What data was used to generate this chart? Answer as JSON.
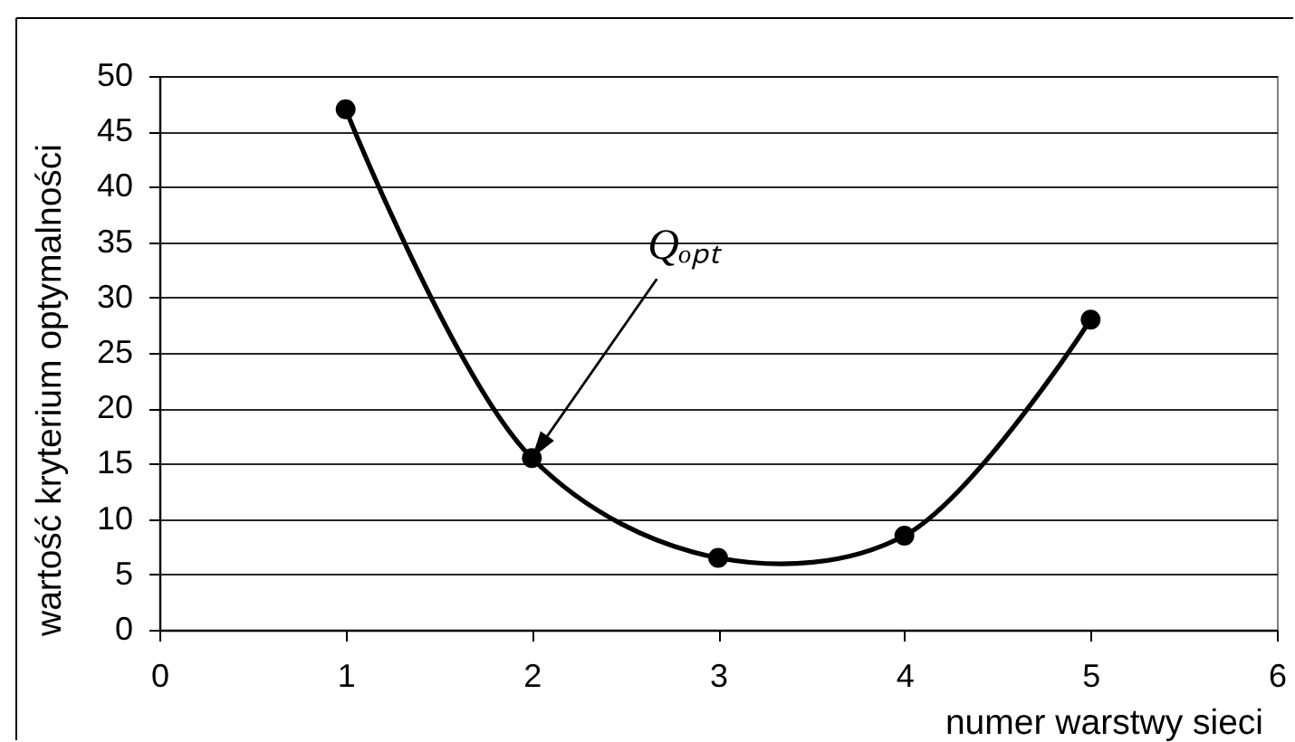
{
  "chart_data": {
    "type": "line",
    "xlabel": "numer warstwy sieci",
    "ylabel": "wartość kryterium optymalności",
    "x": [
      1,
      2,
      3,
      4,
      5
    ],
    "series": [
      {
        "color": "#000000",
        "values": [
          47,
          15.5,
          6.5,
          8.5,
          28
        ]
      }
    ],
    "marker": "circle",
    "line_style": "solid",
    "grid": "y",
    "xlim": [
      0,
      6
    ],
    "xticks": [
      0,
      1,
      2,
      3,
      4,
      5,
      6
    ],
    "ylim": [
      0,
      50
    ],
    "yticks": [
      0,
      5,
      10,
      15,
      20,
      25,
      30,
      35,
      40,
      45,
      50
    ],
    "annotations": [
      {
        "text": "Qₒₚₜ",
        "x": 2,
        "y": 15.5
      }
    ]
  }
}
